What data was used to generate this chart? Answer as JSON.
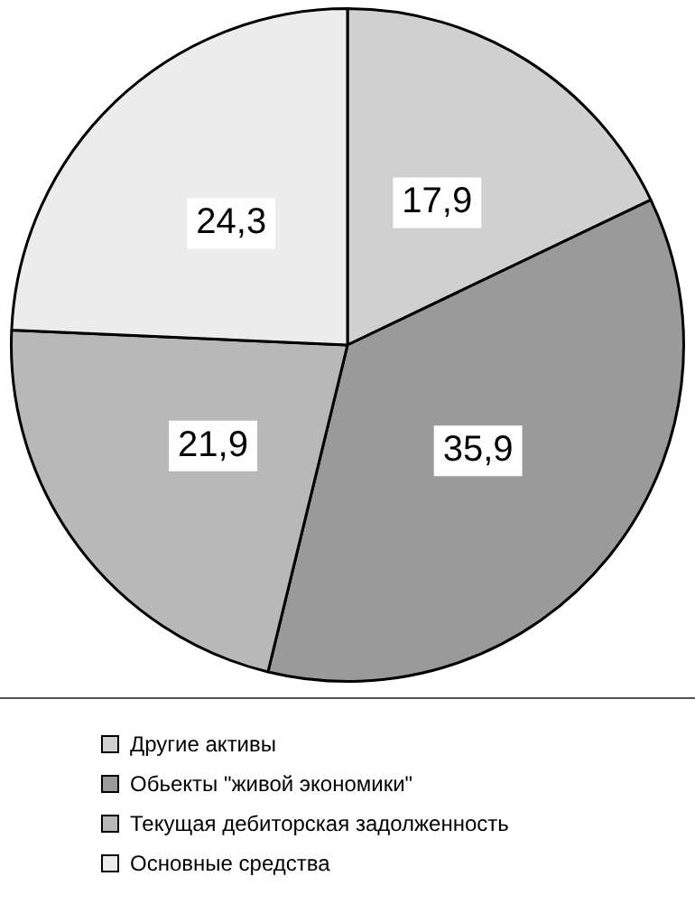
{
  "chart_data": {
    "type": "pie",
    "categories": [
      "Другие активы",
      "Обьекты \"живой экономики\"",
      "Текущая дебиторская задолженность",
      "Основные средства"
    ],
    "values": [
      17.9,
      35.9,
      21.9,
      24.3
    ],
    "value_labels": [
      "17,9",
      "35,9",
      "21,9",
      "24,3"
    ],
    "colors": [
      "#d0d0d0",
      "#9a9a9a",
      "#b8b8b8",
      "#ececec"
    ],
    "legend": "bottom"
  }
}
